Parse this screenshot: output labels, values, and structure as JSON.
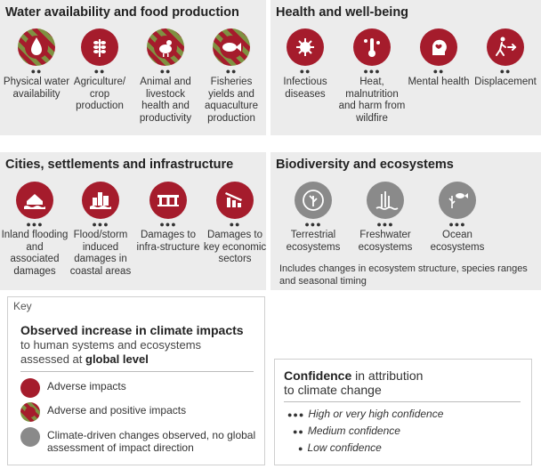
{
  "panels": {
    "water": {
      "title": "Water availability and food production",
      "items": [
        {
          "icon": "water-drop-icon",
          "type": "mixed",
          "dots": "●●",
          "label": "Physical water availability"
        },
        {
          "icon": "wheat-icon",
          "type": "adverse",
          "dots": "●●",
          "label": "Agriculture/ crop production"
        },
        {
          "icon": "chicken-icon",
          "type": "mixed",
          "dots": "●●",
          "label": "Animal and livestock health and productivity"
        },
        {
          "icon": "fish-icon",
          "type": "mixed",
          "dots": "●●",
          "label": "Fisheries yields and aquaculture production"
        }
      ]
    },
    "health": {
      "title": "Health and well-being",
      "items": [
        {
          "icon": "virus-icon",
          "type": "adverse",
          "dots": "●●",
          "label": "Infectious diseases"
        },
        {
          "icon": "heat-icon",
          "type": "adverse",
          "dots": "●●●",
          "label": "Heat, malnutrition and harm from wildfire"
        },
        {
          "icon": "mental-health-icon",
          "type": "adverse",
          "dots": "●●",
          "label": "Mental health"
        },
        {
          "icon": "person-running-icon",
          "type": "adverse",
          "dots": "●●",
          "label": "Displacement"
        }
      ]
    },
    "cities": {
      "title": "Cities, settlements and infrastructure",
      "items": [
        {
          "icon": "flooded-house-icon",
          "type": "adverse",
          "dots": "●●●",
          "label": "Inland flooding and associated damages"
        },
        {
          "icon": "coastal-city-icon",
          "type": "adverse",
          "dots": "●●●",
          "label": "Flood/storm induced damages in coastal areas"
        },
        {
          "icon": "bridge-icon",
          "type": "adverse",
          "dots": "●●●",
          "label": "Damages to infra-structure"
        },
        {
          "icon": "declining-chart-icon",
          "type": "adverse",
          "dots": "●●",
          "label": "Damages to key economic sectors"
        }
      ]
    },
    "biodiversity": {
      "title": "Biodiversity and ecosystems",
      "items": [
        {
          "icon": "terrestrial-icon",
          "type": "grey",
          "dots": "●●●",
          "label": "Terrestrial ecosystems"
        },
        {
          "icon": "freshwater-icon",
          "type": "grey",
          "dots": "●●●",
          "label": "Freshwater ecosystems"
        },
        {
          "icon": "ocean-icon",
          "type": "grey",
          "dots": "●●●",
          "label": "Ocean ecosystems"
        }
      ],
      "note": "Includes changes in ecosystem structure, species ranges and seasonal timing"
    }
  },
  "key": {
    "tag": "Key",
    "heading": "Observed increase in climate impacts",
    "sub_line1": "to human systems and ecosystems",
    "sub_line2_prefix": "assessed at ",
    "sub_line2_bold": "global level",
    "rows": [
      {
        "type": "adverse",
        "label": "Adverse impacts"
      },
      {
        "type": "mixed",
        "label": "Adverse and positive impacts"
      },
      {
        "type": "grey",
        "label": "Climate-driven changes observed, no global assessment of impact direction"
      }
    ],
    "colors": {
      "adverse": "#a51c2c",
      "positive": "#7f9142",
      "grey": "#8a8a8a"
    }
  },
  "confidence": {
    "title_bold": "Confidence",
    "title_rest": " in attribution",
    "title_line2": "to climate change",
    "rows": [
      {
        "dots": "●●●",
        "label": "High or very high confidence"
      },
      {
        "dots": "●●",
        "label": "Medium confidence"
      },
      {
        "dots": "●",
        "label": "Low confidence"
      }
    ]
  }
}
